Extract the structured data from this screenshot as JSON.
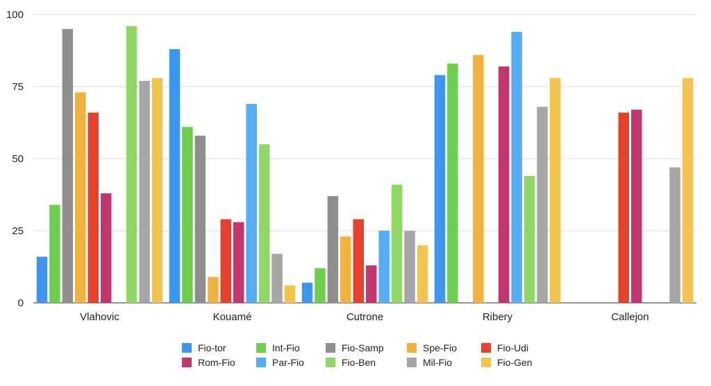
{
  "chart_data": {
    "type": "bar",
    "categories": [
      "Vlahovic",
      "Kouamé",
      "Cutrone",
      "Ribery",
      "Callejon"
    ],
    "ylim": [
      0,
      100
    ],
    "yticks": [
      0,
      25,
      50,
      75,
      100
    ],
    "grid": true,
    "legend_position": "bottom",
    "series": [
      {
        "name": "Fio-tor",
        "color": "#3d97f0",
        "values": [
          16,
          88,
          7,
          79,
          null
        ]
      },
      {
        "name": "Int-Fio",
        "color": "#6ecf4e",
        "values": [
          34,
          61,
          12,
          83,
          null
        ]
      },
      {
        "name": "Fio-Samp",
        "color": "#8e8e8e",
        "values": [
          95,
          58,
          37,
          null,
          null
        ]
      },
      {
        "name": "Spe-Fio",
        "color": "#f2b33d",
        "values": [
          73,
          9,
          23,
          86,
          null
        ]
      },
      {
        "name": "Fio-Udi",
        "color": "#e8402b",
        "values": [
          66,
          29,
          29,
          null,
          66
        ]
      },
      {
        "name": "Rom-Fio",
        "color": "#c2356f",
        "values": [
          38,
          28,
          13,
          82,
          67
        ]
      },
      {
        "name": "Par-Fio",
        "color": "#55aef5",
        "values": [
          null,
          69,
          25,
          94,
          null
        ]
      },
      {
        "name": "Fio-Ben",
        "color": "#8fd866",
        "values": [
          96,
          55,
          41,
          44,
          null
        ]
      },
      {
        "name": "Mil-Fio",
        "color": "#a6a6a6",
        "values": [
          77,
          17,
          25,
          68,
          47
        ]
      },
      {
        "name": "Fio-Gen",
        "color": "#f2c44d",
        "values": [
          78,
          6,
          20,
          78,
          78
        ]
      }
    ]
  }
}
